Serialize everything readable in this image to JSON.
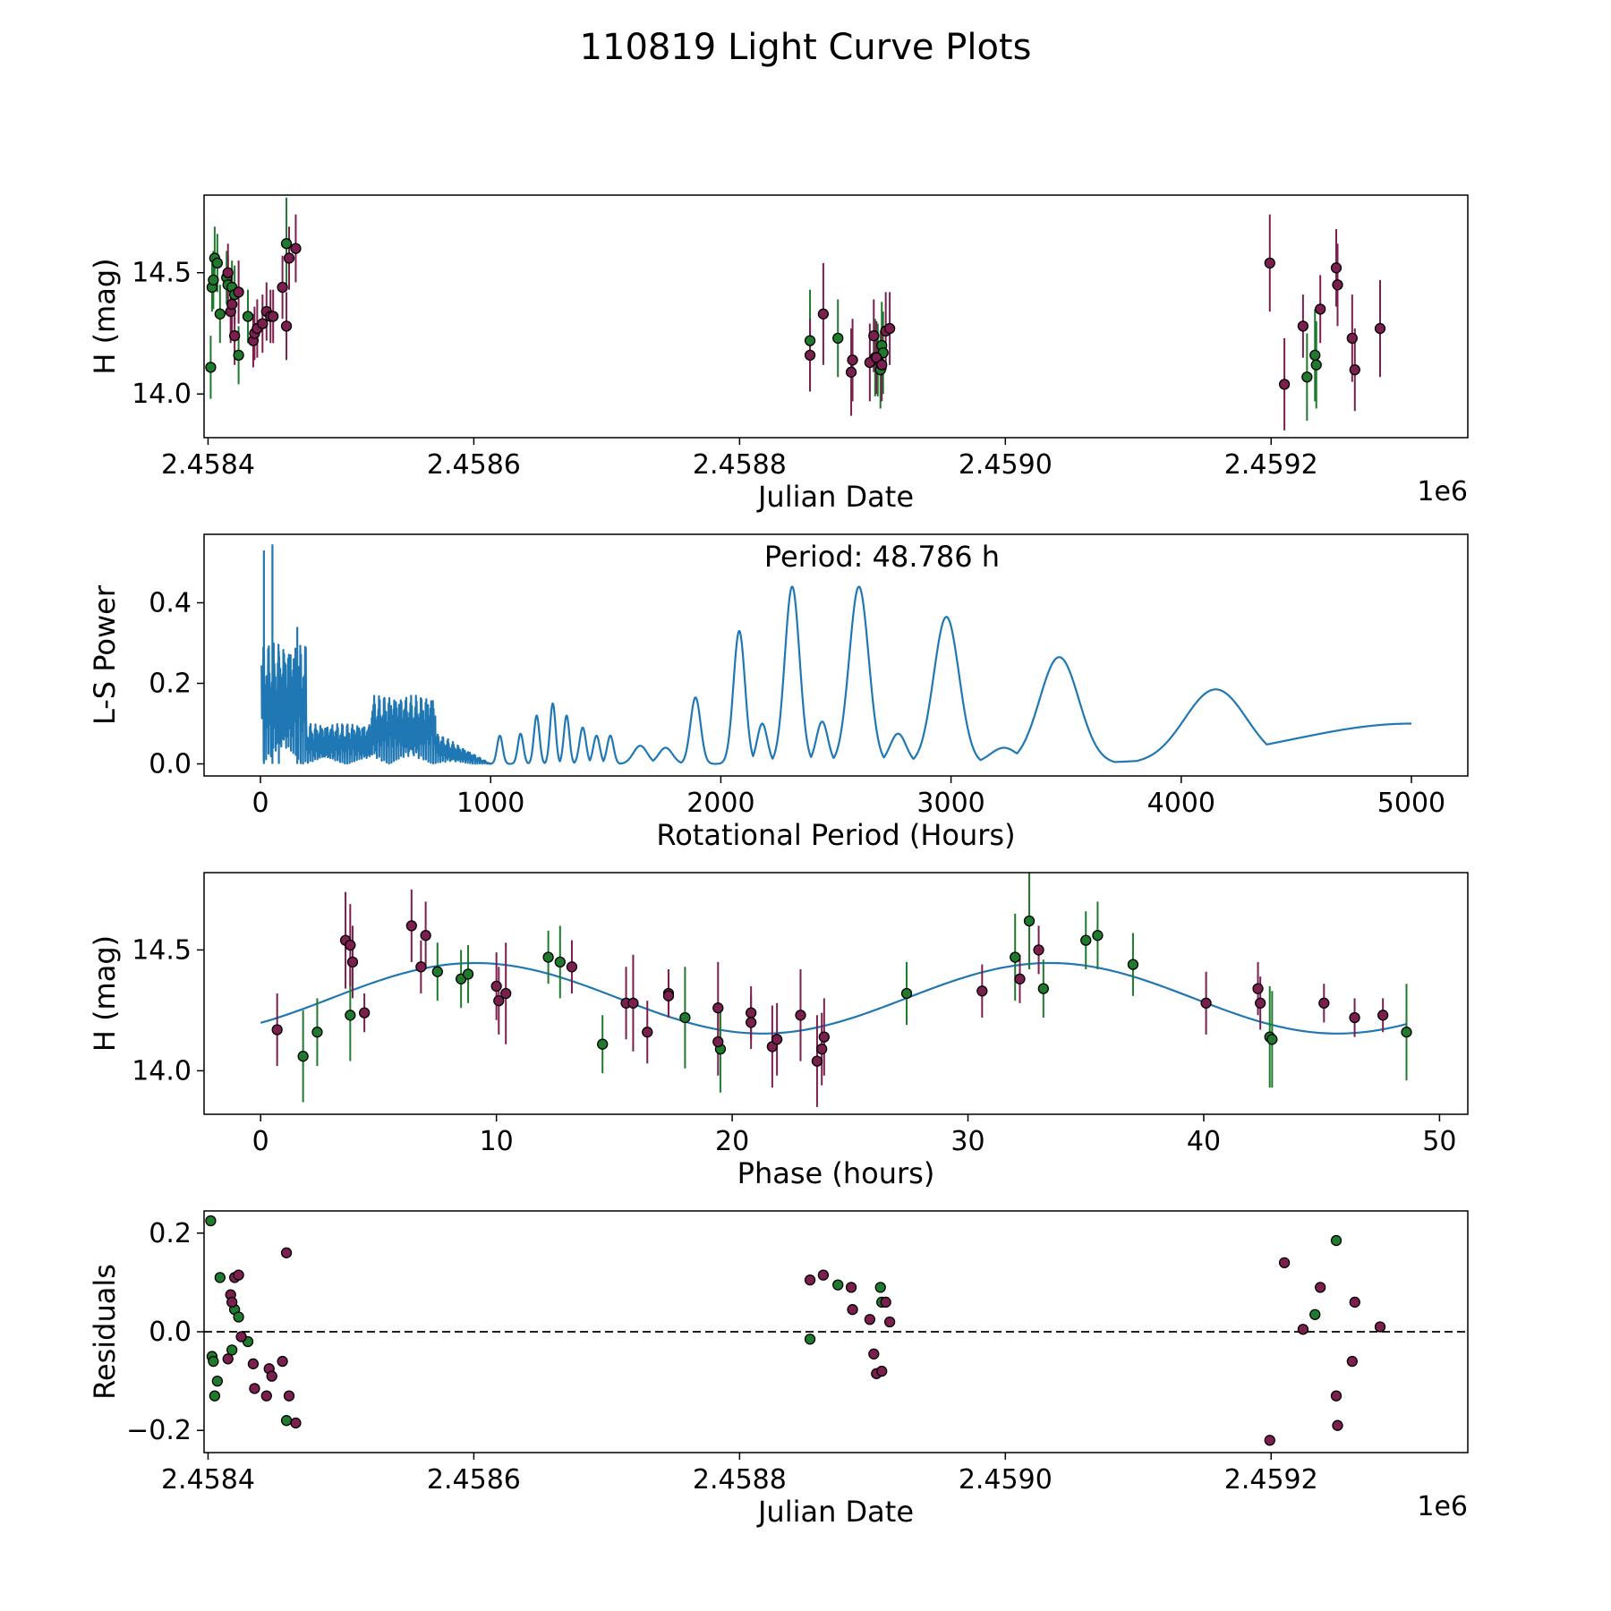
{
  "figure": {
    "title": "110819 Light Curve Plots"
  },
  "colors": {
    "green": "#1f7a2e",
    "purple": "#7a1f4e",
    "line": "#1f77b4",
    "edge": "#000000",
    "dash": "#000000"
  },
  "chart_data": [
    {
      "id": "lc",
      "type": "scatter",
      "title": "",
      "xlabel": "Julian Date",
      "ylabel": "H (mag)",
      "xlim": [
        2458397,
        2459348
      ],
      "ylim": [
        13.82,
        14.82
      ],
      "xticks": [
        2458400,
        2458600,
        2458800,
        2459000,
        2459200
      ],
      "xticklabels": [
        "2.4584",
        "2.4586",
        "2.4588",
        "2.4590",
        "2.4592"
      ],
      "yticks": [
        14.0,
        14.5
      ],
      "yticklabels": [
        "14.0",
        "14.5"
      ],
      "offset_text": "1e6",
      "series": [
        {
          "name": "green",
          "color_key": "green",
          "points": [
            [
              2458402,
              14.11,
              0.13
            ],
            [
              2458403,
              14.44,
              0.1
            ],
            [
              2458404,
              14.47,
              0.12
            ],
            [
              2458405,
              14.56,
              0.13
            ],
            [
              2458407,
              14.54,
              0.12
            ],
            [
              2458409,
              14.33,
              0.12
            ],
            [
              2458414,
              14.48,
              0.11
            ],
            [
              2458415,
              14.45,
              0.12
            ],
            [
              2458418,
              14.44,
              0.11
            ],
            [
              2458420,
              14.41,
              0.12
            ],
            [
              2458423,
              14.16,
              0.12
            ],
            [
              2458430,
              14.32,
              0.11
            ],
            [
              2458459,
              14.62,
              0.19
            ],
            [
              2458853,
              14.22,
              0.21
            ],
            [
              2458874,
              14.23,
              0.16
            ],
            [
              2458902,
              14.15,
              0.16
            ],
            [
              2458904,
              14.14,
              0.15
            ],
            [
              2458906,
              14.1,
              0.16
            ],
            [
              2458907,
              14.2,
              0.18
            ],
            [
              2458908,
              14.17,
              0.17
            ],
            [
              2459227,
              14.07,
              0.18
            ],
            [
              2459233,
              14.16,
              0.19
            ],
            [
              2459234,
              14.12,
              0.18
            ]
          ]
        },
        {
          "name": "purple",
          "color_key": "purple",
          "points": [
            [
              2458415,
              14.5,
              0.12
            ],
            [
              2458417,
              14.34,
              0.13
            ],
            [
              2458418,
              14.37,
              0.12
            ],
            [
              2458420,
              14.24,
              0.12
            ],
            [
              2458423,
              14.42,
              0.13
            ],
            [
              2458434,
              14.22,
              0.11
            ],
            [
              2458435,
              14.25,
              0.11
            ],
            [
              2458437,
              14.27,
              0.12
            ],
            [
              2458441,
              14.29,
              0.12
            ],
            [
              2458444,
              14.34,
              0.12
            ],
            [
              2458447,
              14.32,
              0.11
            ],
            [
              2458449,
              14.32,
              0.11
            ],
            [
              2458456,
              14.44,
              0.13
            ],
            [
              2458459,
              14.28,
              0.14
            ],
            [
              2458461,
              14.56,
              0.13
            ],
            [
              2458466,
              14.6,
              0.14
            ],
            [
              2458853,
              14.16,
              0.15
            ],
            [
              2458863,
              14.33,
              0.21
            ],
            [
              2458884,
              14.09,
              0.18
            ],
            [
              2458885,
              14.14,
              0.17
            ],
            [
              2458898,
              14.13,
              0.16
            ],
            [
              2458901,
              14.24,
              0.15
            ],
            [
              2458903,
              14.15,
              0.15
            ],
            [
              2458907,
              14.12,
              0.15
            ],
            [
              2458910,
              14.26,
              0.16
            ],
            [
              2458913,
              14.27,
              0.15
            ],
            [
              2459199,
              14.54,
              0.2
            ],
            [
              2459210,
              14.04,
              0.19
            ],
            [
              2459224,
              14.28,
              0.13
            ],
            [
              2459237,
              14.35,
              0.14
            ],
            [
              2459249,
              14.52,
              0.16
            ],
            [
              2459250,
              14.45,
              0.17
            ],
            [
              2459261,
              14.23,
              0.18
            ],
            [
              2459263,
              14.1,
              0.17
            ],
            [
              2459282,
              14.27,
              0.2
            ]
          ]
        }
      ]
    },
    {
      "id": "ls",
      "type": "line",
      "title": "",
      "xlabel": "Rotational Period (Hours)",
      "ylabel": "L-S Power",
      "xlim": [
        -245,
        5245
      ],
      "ylim": [
        -0.03,
        0.57
      ],
      "xticks": [
        0,
        1000,
        2000,
        3000,
        4000,
        5000
      ],
      "xticklabels": [
        "0",
        "1000",
        "2000",
        "3000",
        "4000",
        "5000"
      ],
      "yticks": [
        0.0,
        0.2,
        0.4
      ],
      "yticklabels": [
        "0.0",
        "0.2",
        "0.4"
      ],
      "annotation": "Period: 48.786 h",
      "peaks": [
        [
          1040,
          0.07,
          12
        ],
        [
          1130,
          0.075,
          12
        ],
        [
          1200,
          0.12,
          12
        ],
        [
          1270,
          0.15,
          12
        ],
        [
          1330,
          0.12,
          12
        ],
        [
          1400,
          0.09,
          14
        ],
        [
          1460,
          0.07,
          14
        ],
        [
          1520,
          0.07,
          14
        ],
        [
          1650,
          0.045,
          30
        ],
        [
          1760,
          0.04,
          30
        ],
        [
          1890,
          0.165,
          22
        ],
        [
          2080,
          0.33,
          25
        ],
        [
          2180,
          0.1,
          22
        ],
        [
          2310,
          0.44,
          32
        ],
        [
          2440,
          0.105,
          25
        ],
        [
          2600,
          0.44,
          42
        ],
        [
          2770,
          0.075,
          35
        ],
        [
          2980,
          0.365,
          55
        ],
        [
          3230,
          0.04,
          60
        ],
        [
          3470,
          0.265,
          85
        ],
        [
          4150,
          0.185,
          135
        ],
        [
          5000,
          0.1,
          520
        ]
      ],
      "spikes": [
        [
          15,
          0.53
        ],
        [
          52,
          0.545
        ],
        [
          80,
          0.28
        ],
        [
          160,
          0.34
        ],
        [
          175,
          0.22
        ]
      ]
    },
    {
      "id": "phase",
      "type": "scatter",
      "title": "",
      "xlabel": "Phase (hours)",
      "ylabel": "H (mag)",
      "xlim": [
        -2.4,
        51.2
      ],
      "ylim": [
        13.82,
        14.82
      ],
      "xticks": [
        0,
        10,
        20,
        30,
        40,
        50
      ],
      "xticklabels": [
        "0",
        "10",
        "20",
        "30",
        "40",
        "50"
      ],
      "yticks": [
        14.0,
        14.5
      ],
      "yticklabels": [
        "14.0",
        "14.5"
      ],
      "model": {
        "period": 48.786,
        "mean": 14.3,
        "amp": 0.146,
        "phase_shift": 0.77
      },
      "series": [
        {
          "name": "green",
          "color_key": "green",
          "points": [
            [
              1.8,
              14.06,
              0.19
            ],
            [
              2.4,
              14.16,
              0.14
            ],
            [
              3.8,
              14.23,
              0.19
            ],
            [
              7.5,
              14.41,
              0.12
            ],
            [
              8.5,
              14.38,
              0.12
            ],
            [
              8.8,
              14.4,
              0.12
            ],
            [
              12.2,
              14.47,
              0.11
            ],
            [
              12.7,
              14.45,
              0.15
            ],
            [
              14.5,
              14.11,
              0.12
            ],
            [
              18.0,
              14.22,
              0.21
            ],
            [
              19.5,
              14.09,
              0.18
            ],
            [
              27.4,
              14.32,
              0.13
            ],
            [
              32.0,
              14.47,
              0.18
            ],
            [
              32.6,
              14.62,
              0.2
            ],
            [
              33.2,
              14.34,
              0.12
            ],
            [
              35.0,
              14.54,
              0.12
            ],
            [
              35.5,
              14.56,
              0.14
            ],
            [
              37.0,
              14.44,
              0.13
            ],
            [
              42.8,
              14.14,
              0.21
            ],
            [
              42.9,
              14.13,
              0.2
            ],
            [
              48.6,
              14.16,
              0.2
            ]
          ]
        },
        {
          "name": "purple",
          "color_key": "purple",
          "points": [
            [
              0.7,
              14.17,
              0.15
            ],
            [
              3.6,
              14.54,
              0.2
            ],
            [
              3.8,
              14.52,
              0.17
            ],
            [
              3.9,
              14.45,
              0.15
            ],
            [
              4.4,
              14.24,
              0.08
            ],
            [
              6.4,
              14.6,
              0.15
            ],
            [
              6.8,
              14.43,
              0.11
            ],
            [
              7.0,
              14.56,
              0.14
            ],
            [
              10.0,
              14.35,
              0.14
            ],
            [
              10.1,
              14.29,
              0.14
            ],
            [
              10.4,
              14.32,
              0.21
            ],
            [
              13.2,
              14.43,
              0.11
            ],
            [
              15.5,
              14.28,
              0.15
            ],
            [
              15.8,
              14.28,
              0.2
            ],
            [
              16.4,
              14.16,
              0.13
            ],
            [
              17.3,
              14.32,
              0.1
            ],
            [
              17.3,
              14.31,
              0.09
            ],
            [
              19.4,
              14.26,
              0.19
            ],
            [
              19.4,
              14.12,
              0.14
            ],
            [
              20.8,
              14.24,
              0.11
            ],
            [
              20.8,
              14.2,
              0.11
            ],
            [
              21.7,
              14.1,
              0.17
            ],
            [
              21.9,
              14.13,
              0.15
            ],
            [
              22.9,
              14.23,
              0.19
            ],
            [
              23.6,
              14.04,
              0.19
            ],
            [
              23.8,
              14.09,
              0.15
            ],
            [
              23.9,
              14.14,
              0.16
            ],
            [
              30.6,
              14.33,
              0.11
            ],
            [
              32.2,
              14.38,
              0.1
            ],
            [
              33.0,
              14.5,
              0.1
            ],
            [
              40.1,
              14.28,
              0.13
            ],
            [
              42.3,
              14.34,
              0.11
            ],
            [
              42.4,
              14.28,
              0.11
            ],
            [
              45.1,
              14.28,
              0.08
            ],
            [
              46.4,
              14.22,
              0.08
            ],
            [
              47.6,
              14.23,
              0.07
            ]
          ]
        }
      ]
    },
    {
      "id": "resid",
      "type": "scatter",
      "title": "",
      "xlabel": "Julian Date",
      "ylabel": "Residuals",
      "xlim": [
        2458397,
        2459348
      ],
      "ylim": [
        -0.245,
        0.245
      ],
      "xticks": [
        2458400,
        2458600,
        2458800,
        2459000,
        2459200
      ],
      "xticklabels": [
        "2.4584",
        "2.4586",
        "2.4588",
        "2.4590",
        "2.4592"
      ],
      "yticks": [
        -0.2,
        0.0,
        0.2
      ],
      "yticklabels": [
        "−0.2",
        "0.0",
        "0.2"
      ],
      "offset_text": "1e6",
      "reference_line": 0.0,
      "series": [
        {
          "name": "green",
          "color_key": "green",
          "points": [
            [
              2458402,
              0.225
            ],
            [
              2458403,
              -0.05
            ],
            [
              2458404,
              -0.06
            ],
            [
              2458405,
              -0.13
            ],
            [
              2458407,
              -0.1
            ],
            [
              2458409,
              0.11
            ],
            [
              2458418,
              -0.037
            ],
            [
              2458420,
              0.045
            ],
            [
              2458423,
              0.03
            ],
            [
              2458430,
              -0.02
            ],
            [
              2458459,
              -0.18
            ],
            [
              2458853,
              -0.015
            ],
            [
              2458874,
              0.095
            ],
            [
              2458906,
              0.09
            ],
            [
              2458907,
              0.06
            ],
            [
              2459249,
              0.185
            ],
            [
              2459233,
              0.035
            ]
          ]
        },
        {
          "name": "purple",
          "color_key": "purple",
          "points": [
            [
              2458415,
              -0.055
            ],
            [
              2458417,
              0.075
            ],
            [
              2458418,
              0.06
            ],
            [
              2458420,
              0.11
            ],
            [
              2458423,
              0.115
            ],
            [
              2458425,
              -0.01
            ],
            [
              2458434,
              -0.065
            ],
            [
              2458435,
              -0.115
            ],
            [
              2458444,
              -0.13
            ],
            [
              2458446,
              -0.075
            ],
            [
              2458448,
              -0.09
            ],
            [
              2458456,
              -0.06
            ],
            [
              2458459,
              0.16
            ],
            [
              2458461,
              -0.13
            ],
            [
              2458466,
              -0.185
            ],
            [
              2458853,
              0.105
            ],
            [
              2458863,
              0.115
            ],
            [
              2458884,
              0.09
            ],
            [
              2458885,
              0.045
            ],
            [
              2458898,
              0.025
            ],
            [
              2458901,
              -0.045
            ],
            [
              2458903,
              -0.085
            ],
            [
              2458907,
              -0.08
            ],
            [
              2458910,
              0.06
            ],
            [
              2458913,
              0.02
            ],
            [
              2459199,
              -0.22
            ],
            [
              2459210,
              0.14
            ],
            [
              2459224,
              0.005
            ],
            [
              2459237,
              0.09
            ],
            [
              2459249,
              -0.13
            ],
            [
              2459250,
              -0.19
            ],
            [
              2459261,
              -0.06
            ],
            [
              2459263,
              0.06
            ],
            [
              2459282,
              0.01
            ]
          ]
        }
      ]
    }
  ]
}
